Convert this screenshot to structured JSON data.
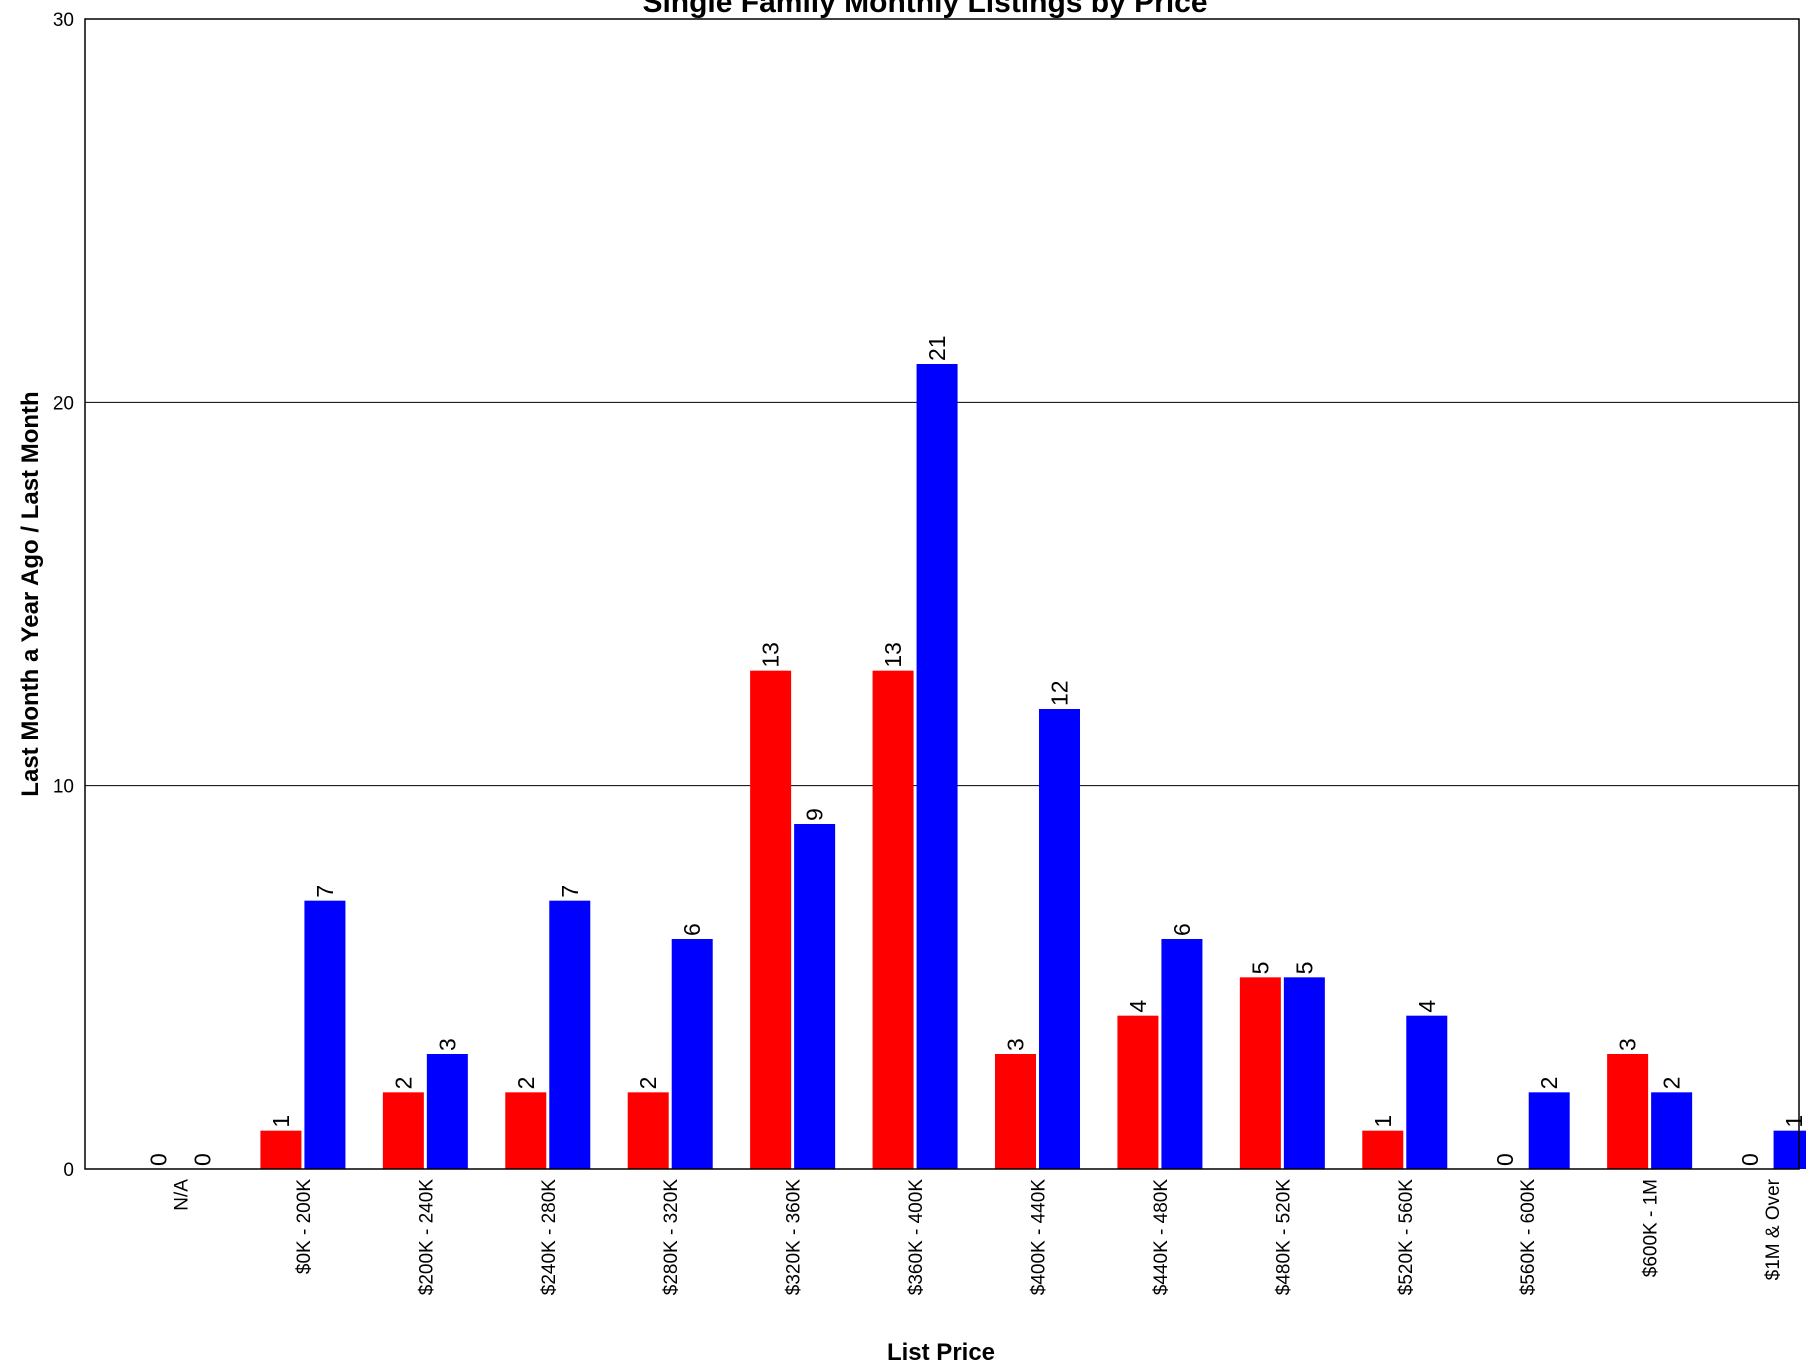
{
  "chart_data": {
    "type": "bar",
    "title": "Single Family Monthly Listings by Price",
    "xlabel": "List Price",
    "ylabel": "Last Month a Year Ago / Last Month",
    "ylim": [
      0,
      30
    ],
    "yticks": [
      0,
      10,
      20,
      30
    ],
    "grid": true,
    "categories": [
      "N/A",
      "$0K - 200K",
      "$200K - 240K",
      "$240K - 280K",
      "$280K - 320K",
      "$320K - 360K",
      "$360K - 400K",
      "$400K - 440K",
      "$440K - 480K",
      "$480K - 520K",
      "$520K - 560K",
      "$560K - 600K",
      "$600K - 1M",
      "$1M & Over"
    ],
    "series": [
      {
        "color": "#ff0000",
        "values": [
          0,
          1,
          2,
          2,
          2,
          13,
          13,
          3,
          4,
          5,
          1,
          0,
          3,
          0
        ]
      },
      {
        "color": "#0000ff",
        "values": [
          0,
          7,
          3,
          7,
          6,
          9,
          21,
          12,
          6,
          5,
          4,
          2,
          2,
          1
        ]
      }
    ]
  }
}
